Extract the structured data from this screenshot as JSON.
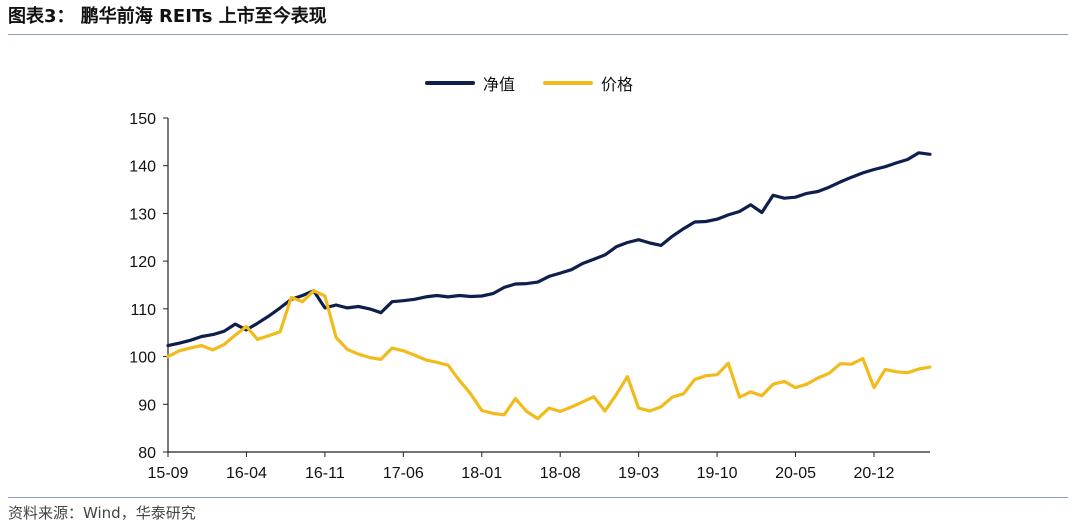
{
  "figure_title": "图表3： 鹏华前海 REITs 上市至今表现",
  "source": "资料来源：Wind，华泰研究",
  "colors": {
    "nav": "#0f1f4d",
    "price": "#f2bb1c",
    "axis": "#222222",
    "rule": "#8c9fc0"
  },
  "chart_data": {
    "type": "line",
    "title": "",
    "xlabel": "",
    "ylabel": "",
    "ylim": [
      80,
      150
    ],
    "yticks": [
      80,
      90,
      100,
      110,
      120,
      130,
      140,
      150
    ],
    "xticks": [
      "15-09",
      "16-04",
      "16-11",
      "17-06",
      "18-01",
      "18-08",
      "19-03",
      "19-10",
      "20-05",
      "20-12"
    ],
    "xrange": [
      "2015-09",
      "2021-05"
    ],
    "legend_position": "top-center",
    "grid": false,
    "series": [
      {
        "name": "净值",
        "color": "#0f1f4d",
        "points": [
          [
            "2015-09",
            102.3
          ],
          [
            "2015-10",
            102.8
          ],
          [
            "2015-11",
            103.4
          ],
          [
            "2015-12",
            104.2
          ],
          [
            "2016-01",
            104.6
          ],
          [
            "2016-02",
            105.3
          ],
          [
            "2016-03",
            106.8
          ],
          [
            "2016-04",
            105.6
          ],
          [
            "2016-05",
            107.0
          ],
          [
            "2016-06",
            108.5
          ],
          [
            "2016-07",
            110.2
          ],
          [
            "2016-08",
            112.0
          ],
          [
            "2016-09",
            112.8
          ],
          [
            "2016-10",
            113.8
          ],
          [
            "2016-11",
            110.2
          ],
          [
            "2016-12",
            110.8
          ],
          [
            "2017-01",
            110.2
          ],
          [
            "2017-02",
            110.5
          ],
          [
            "2017-03",
            110.0
          ],
          [
            "2017-04",
            109.2
          ],
          [
            "2017-05",
            111.5
          ],
          [
            "2017-06",
            111.7
          ],
          [
            "2017-07",
            112.0
          ],
          [
            "2017-08",
            112.5
          ],
          [
            "2017-09",
            112.8
          ],
          [
            "2017-10",
            112.5
          ],
          [
            "2017-11",
            112.8
          ],
          [
            "2017-12",
            112.6
          ],
          [
            "2018-01",
            112.7
          ],
          [
            "2018-02",
            113.2
          ],
          [
            "2018-03",
            114.5
          ],
          [
            "2018-04",
            115.2
          ],
          [
            "2018-05",
            115.3
          ],
          [
            "2018-06",
            115.6
          ],
          [
            "2018-07",
            116.8
          ],
          [
            "2018-08",
            117.5
          ],
          [
            "2018-09",
            118.2
          ],
          [
            "2018-10",
            119.5
          ],
          [
            "2018-11",
            120.4
          ],
          [
            "2018-12",
            121.3
          ],
          [
            "2019-01",
            123.0
          ],
          [
            "2019-02",
            123.9
          ],
          [
            "2019-03",
            124.5
          ],
          [
            "2019-04",
            123.8
          ],
          [
            "2019-05",
            123.3
          ],
          [
            "2019-06",
            125.2
          ],
          [
            "2019-07",
            126.8
          ],
          [
            "2019-08",
            128.2
          ],
          [
            "2019-09",
            128.3
          ],
          [
            "2019-10",
            128.8
          ],
          [
            "2019-11",
            129.7
          ],
          [
            "2019-12",
            130.4
          ],
          [
            "2020-01",
            131.8
          ],
          [
            "2020-02",
            130.2
          ],
          [
            "2020-03",
            133.8
          ],
          [
            "2020-04",
            133.2
          ],
          [
            "2020-05",
            133.4
          ],
          [
            "2020-06",
            134.2
          ],
          [
            "2020-07",
            134.6
          ],
          [
            "2020-08",
            135.5
          ],
          [
            "2020-09",
            136.6
          ],
          [
            "2020-10",
            137.6
          ],
          [
            "2020-11",
            138.5
          ],
          [
            "2020-12",
            139.2
          ],
          [
            "2021-01",
            139.8
          ],
          [
            "2021-02",
            140.6
          ],
          [
            "2021-03",
            141.3
          ],
          [
            "2021-04",
            142.7
          ],
          [
            "2021-05",
            142.4
          ]
        ]
      },
      {
        "name": "价格",
        "color": "#f2bb1c",
        "points": [
          [
            "2015-09",
            100.0
          ],
          [
            "2015-10",
            101.2
          ],
          [
            "2015-11",
            101.8
          ],
          [
            "2015-12",
            102.3
          ],
          [
            "2016-01",
            101.4
          ],
          [
            "2016-02",
            102.5
          ],
          [
            "2016-03",
            104.5
          ],
          [
            "2016-04",
            106.3
          ],
          [
            "2016-05",
            103.6
          ],
          [
            "2016-06",
            104.4
          ],
          [
            "2016-07",
            105.2
          ],
          [
            "2016-08",
            112.4
          ],
          [
            "2016-09",
            111.5
          ],
          [
            "2016-10",
            113.8
          ],
          [
            "2016-11",
            112.7
          ],
          [
            "2016-12",
            104.0
          ],
          [
            "2017-01",
            101.5
          ],
          [
            "2017-02",
            100.5
          ],
          [
            "2017-03",
            99.8
          ],
          [
            "2017-04",
            99.4
          ],
          [
            "2017-05",
            101.8
          ],
          [
            "2017-06",
            101.2
          ],
          [
            "2017-07",
            100.3
          ],
          [
            "2017-08",
            99.3
          ],
          [
            "2017-09",
            98.8
          ],
          [
            "2017-10",
            98.2
          ],
          [
            "2017-11",
            95.0
          ],
          [
            "2017-12",
            92.2
          ],
          [
            "2018-01",
            88.7
          ],
          [
            "2018-02",
            88.1
          ],
          [
            "2018-03",
            87.8
          ],
          [
            "2018-04",
            91.2
          ],
          [
            "2018-05",
            88.5
          ],
          [
            "2018-06",
            87.0
          ],
          [
            "2018-07",
            89.2
          ],
          [
            "2018-08",
            88.5
          ],
          [
            "2018-09",
            89.4
          ],
          [
            "2018-10",
            90.5
          ],
          [
            "2018-11",
            91.6
          ],
          [
            "2018-12",
            88.6
          ],
          [
            "2019-01",
            92.0
          ],
          [
            "2019-02",
            95.8
          ],
          [
            "2019-03",
            89.2
          ],
          [
            "2019-04",
            88.6
          ],
          [
            "2019-05",
            89.5
          ],
          [
            "2019-06",
            91.5
          ],
          [
            "2019-07",
            92.2
          ],
          [
            "2019-08",
            95.2
          ],
          [
            "2019-09",
            96.0
          ],
          [
            "2019-10",
            96.2
          ],
          [
            "2019-11",
            98.6
          ],
          [
            "2019-12",
            91.5
          ],
          [
            "2020-01",
            92.6
          ],
          [
            "2020-02",
            91.8
          ],
          [
            "2020-03",
            94.2
          ],
          [
            "2020-04",
            94.8
          ],
          [
            "2020-05",
            93.5
          ],
          [
            "2020-06",
            94.2
          ],
          [
            "2020-07",
            95.5
          ],
          [
            "2020-08",
            96.5
          ],
          [
            "2020-09",
            98.5
          ],
          [
            "2020-10",
            98.4
          ],
          [
            "2020-11",
            99.6
          ],
          [
            "2020-12",
            93.5
          ],
          [
            "2021-01",
            97.3
          ],
          [
            "2021-02",
            96.8
          ],
          [
            "2021-03",
            96.6
          ],
          [
            "2021-04",
            97.4
          ],
          [
            "2021-05",
            97.8
          ]
        ]
      }
    ]
  }
}
